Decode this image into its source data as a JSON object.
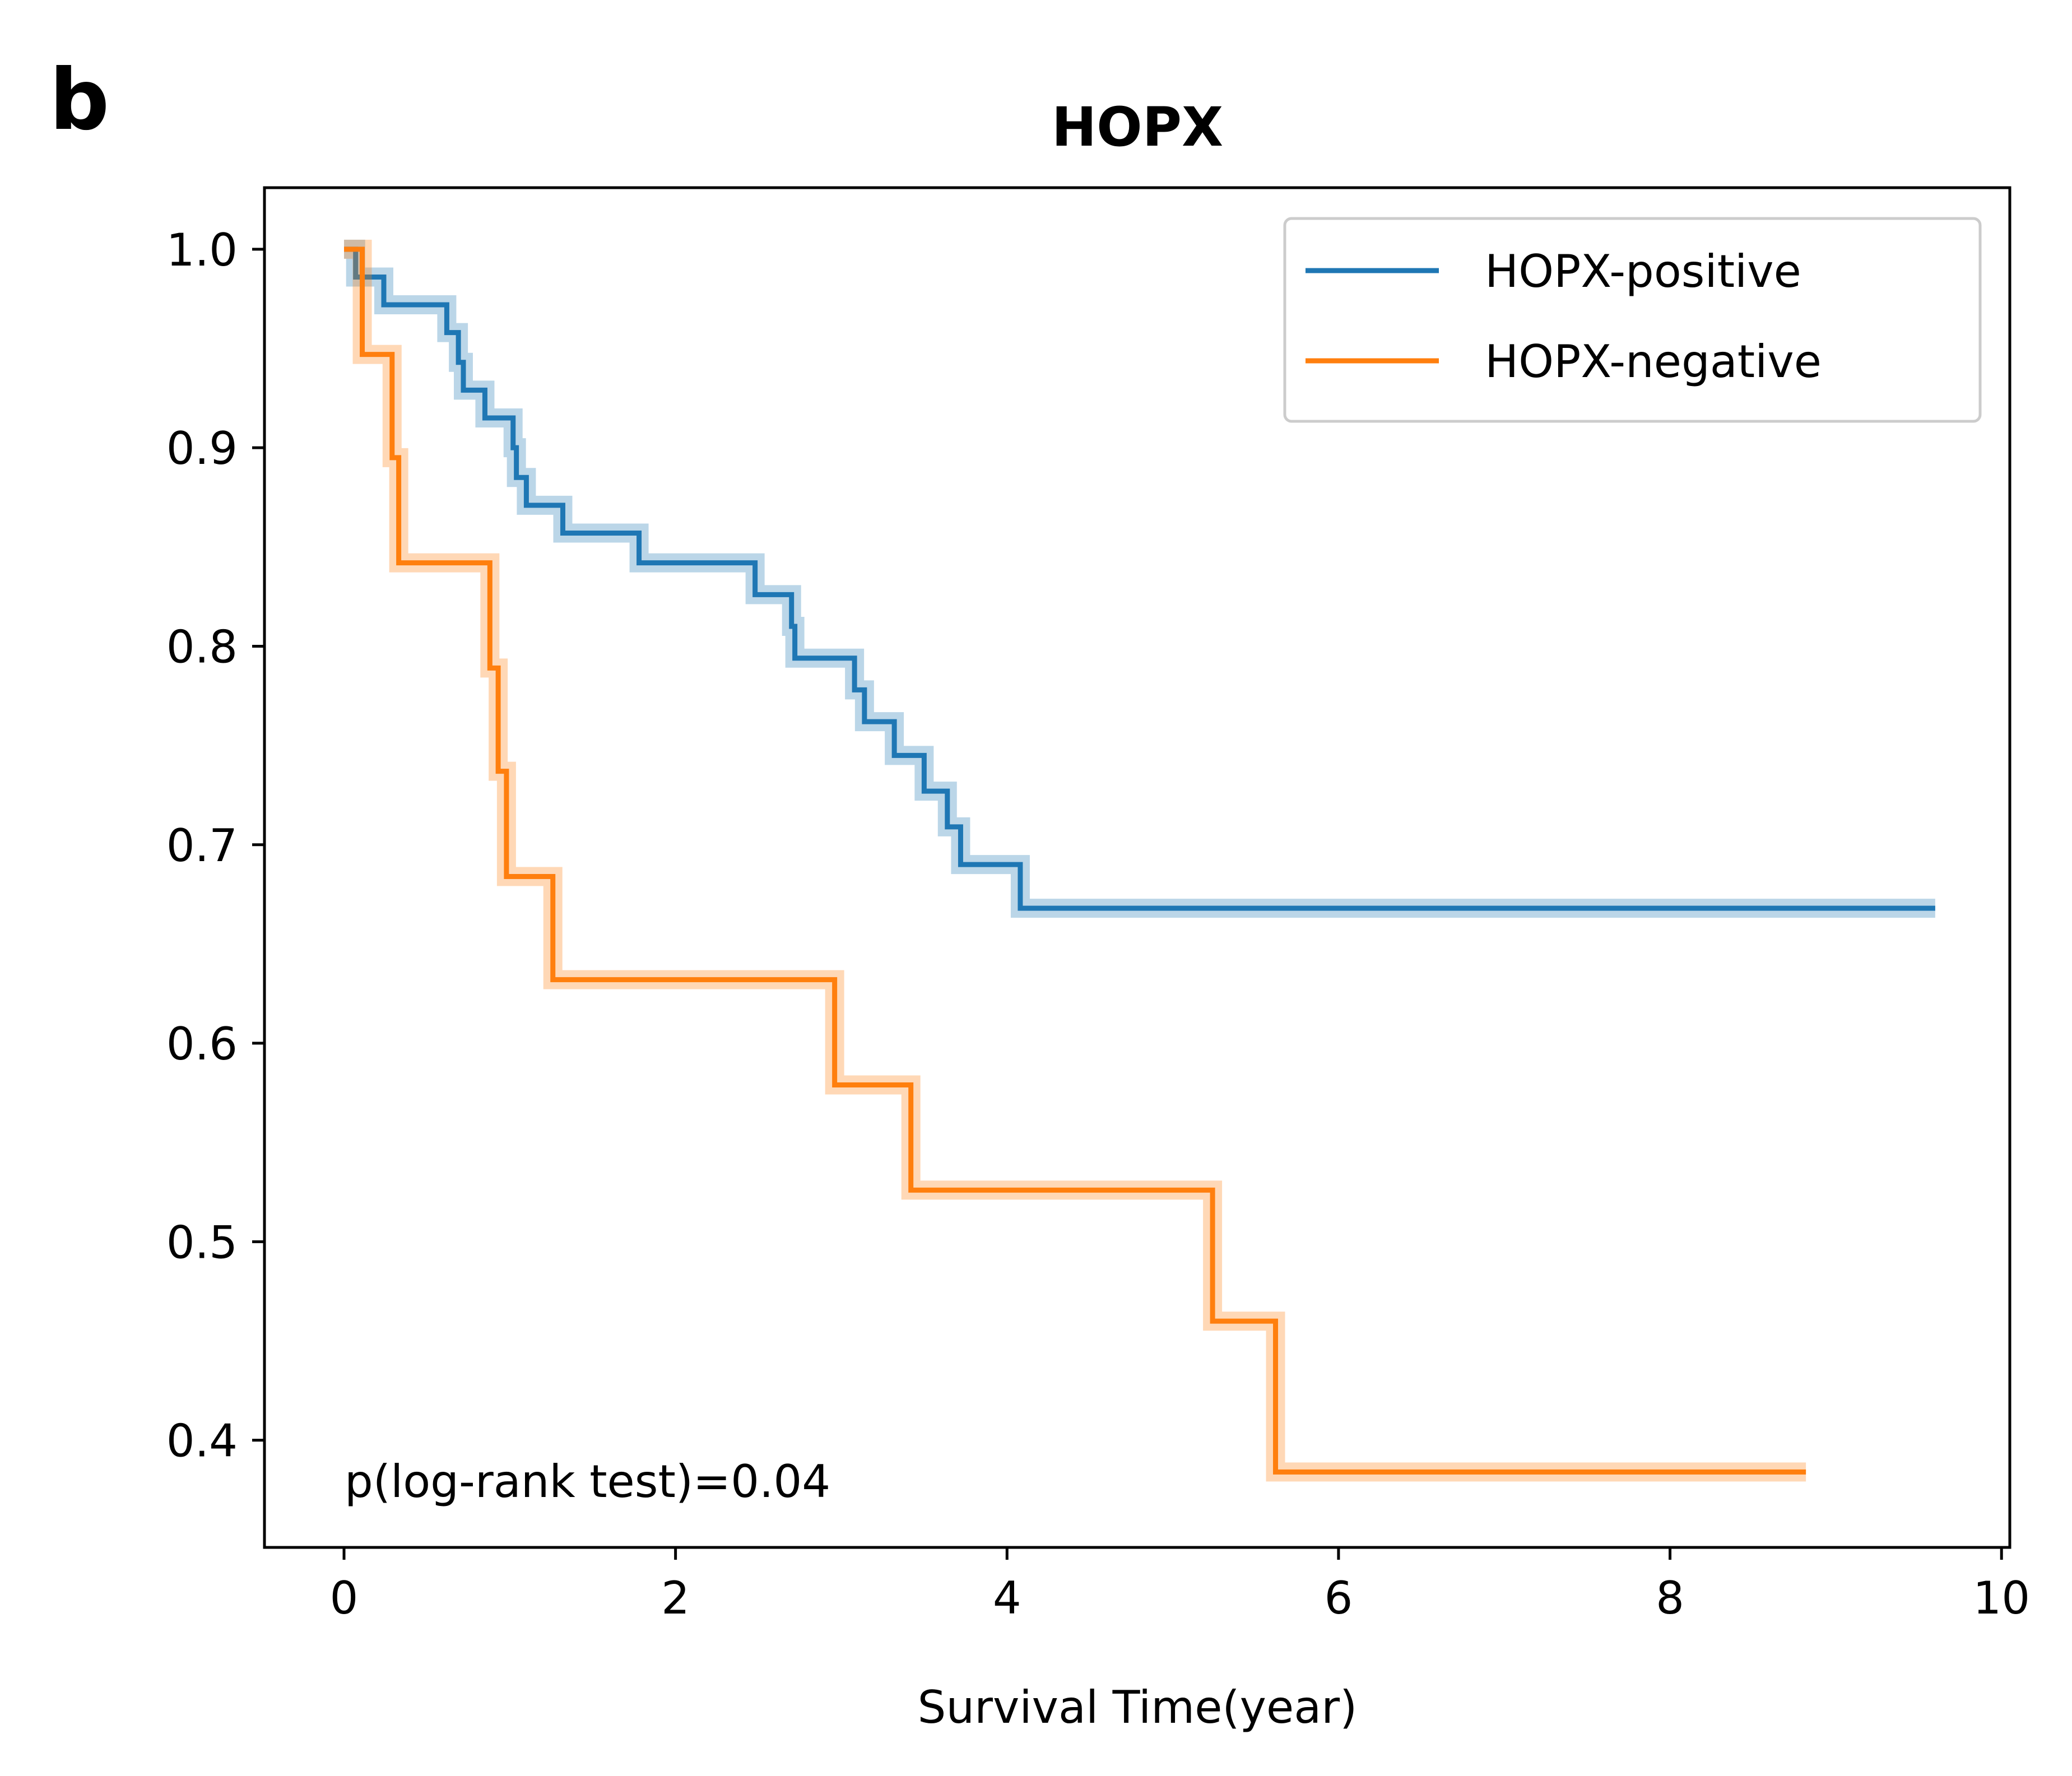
{
  "panel_label": "b",
  "chart_data": {
    "type": "line",
    "title": "HOPX",
    "xlabel": "Survival Time(year)",
    "ylabel": "",
    "xlim": [
      -0.48,
      10.05
    ],
    "ylim": [
      0.346,
      1.031
    ],
    "xticks": [
      0,
      2,
      4,
      6,
      8,
      10
    ],
    "xtick_labels": [
      "0",
      "2",
      "4",
      "6",
      "8",
      "10"
    ],
    "yticks": [
      0.4,
      0.5,
      0.6,
      0.7,
      0.8,
      0.9,
      1.0
    ],
    "ytick_labels": [
      "0.4",
      "0.5",
      "0.6",
      "0.7",
      "0.8",
      "0.9",
      "1.0"
    ],
    "grid": false,
    "legend_position": "top-right",
    "annotation": "p(log-rank test)=0.04",
    "series": [
      {
        "name": "HOPX-positive",
        "color": "#1f77b4",
        "step": true,
        "points": [
          [
            0,
            1.0
          ],
          [
            0.07,
            0.986
          ],
          [
            0.24,
            0.972
          ],
          [
            0.62,
            0.958
          ],
          [
            0.69,
            0.943
          ],
          [
            0.72,
            0.929
          ],
          [
            0.85,
            0.915
          ],
          [
            1.02,
            0.9
          ],
          [
            1.04,
            0.885
          ],
          [
            1.1,
            0.871
          ],
          [
            1.32,
            0.857
          ],
          [
            1.78,
            0.842
          ],
          [
            2.48,
            0.826
          ],
          [
            2.7,
            0.81
          ],
          [
            2.72,
            0.794
          ],
          [
            3.08,
            0.778
          ],
          [
            3.14,
            0.762
          ],
          [
            3.32,
            0.745
          ],
          [
            3.5,
            0.727
          ],
          [
            3.64,
            0.709
          ],
          [
            3.72,
            0.69
          ],
          [
            4.08,
            0.668
          ],
          [
            9.6,
            0.668
          ]
        ]
      },
      {
        "name": "HOPX-negative",
        "color": "#ff7f0e",
        "step": true,
        "points": [
          [
            0,
            1.0
          ],
          [
            0.11,
            0.947
          ],
          [
            0.29,
            0.895
          ],
          [
            0.33,
            0.842
          ],
          [
            0.88,
            0.789
          ],
          [
            0.93,
            0.737
          ],
          [
            0.98,
            0.684
          ],
          [
            1.26,
            0.632
          ],
          [
            2.96,
            0.579
          ],
          [
            3.42,
            0.526
          ],
          [
            5.24,
            0.46
          ],
          [
            5.62,
            0.384
          ],
          [
            8.82,
            0.384
          ]
        ]
      }
    ]
  }
}
